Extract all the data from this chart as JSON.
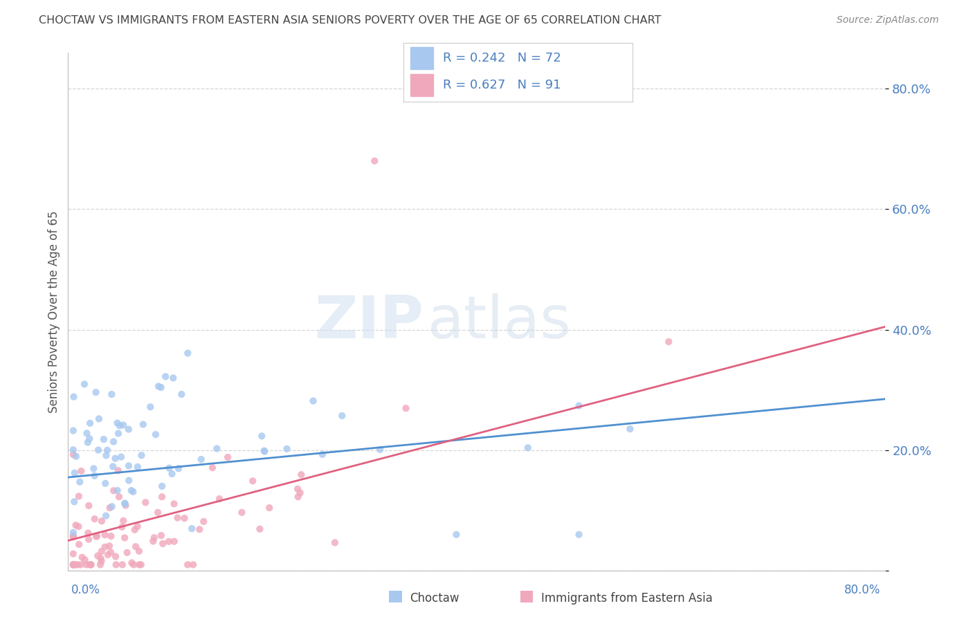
{
  "title": "CHOCTAW VS IMMIGRANTS FROM EASTERN ASIA SENIORS POVERTY OVER THE AGE OF 65 CORRELATION CHART",
  "source": "Source: ZipAtlas.com",
  "ylabel": "Seniors Poverty Over the Age of 65",
  "xlim": [
    0.0,
    0.8
  ],
  "ylim": [
    0.0,
    0.86
  ],
  "yticks": [
    0.0,
    0.2,
    0.4,
    0.6,
    0.8
  ],
  "ytick_labels": [
    "",
    "20.0%",
    "40.0%",
    "60.0%",
    "80.0%"
  ],
  "choctaw_color": "#a8c8f0",
  "immigrants_color": "#f0a8bc",
  "choctaw_line_color": "#5090d0",
  "immigrants_line_color": "#e06080",
  "watermark_zip": "ZIP",
  "watermark_atlas": "atlas",
  "background_color": "#ffffff",
  "grid_color": "#cccccc",
  "blue_text_color": "#4a7fc0",
  "title_color": "#444444",
  "source_color": "#888888"
}
